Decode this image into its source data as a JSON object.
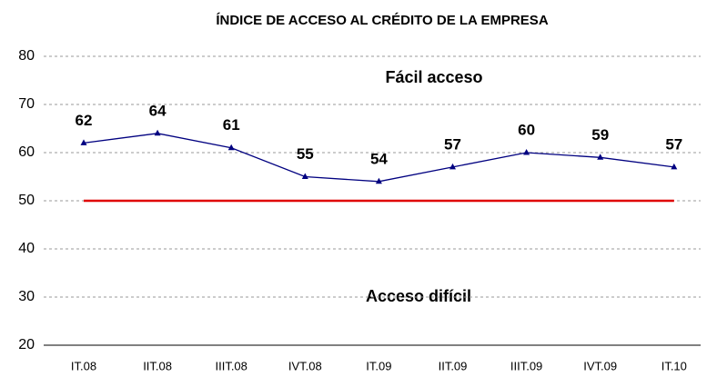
{
  "chart_data": {
    "type": "line",
    "title": "ÍNDICE DE ACCESO AL CRÉDITO DE LA EMPRESA",
    "categories": [
      "IT.08",
      "IIT.08",
      "IIIT.08",
      "IVT.08",
      "IT.09",
      "IIT.09",
      "IIIT.09",
      "IVT.09",
      "IT.10"
    ],
    "values": [
      62,
      64,
      61,
      55,
      54,
      57,
      60,
      59,
      57
    ],
    "color": "#000080",
    "reference": {
      "value": 50,
      "color": "#e00000"
    },
    "annotations": [
      "Fácil acceso",
      "Acceso difícil"
    ],
    "ylim": [
      20,
      80
    ],
    "yticks": [
      20,
      30,
      40,
      50,
      60,
      70,
      80
    ],
    "grid": true
  }
}
